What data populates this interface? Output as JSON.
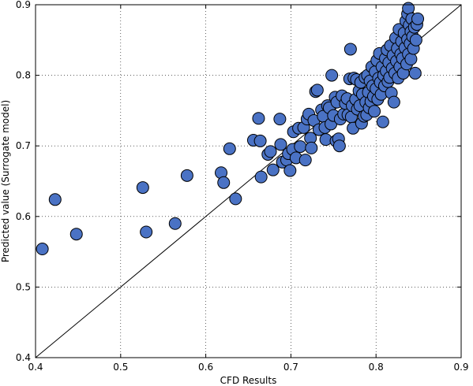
{
  "chart_data": {
    "type": "scatter",
    "xlabel": "CFD Results",
    "ylabel": "Predicted value (Surrogate model)",
    "xlim": [
      0.4,
      0.9
    ],
    "ylim": [
      0.4,
      0.9
    ],
    "xticks": [
      "0.4",
      "0.5",
      "0.6",
      "0.7",
      "0.8",
      "0.9"
    ],
    "yticks": [
      "0.4",
      "0.5",
      "0.6",
      "0.7",
      "0.8",
      "0.9"
    ],
    "grid": true,
    "reference_line": {
      "from": [
        0.4,
        0.4
      ],
      "to": [
        0.9,
        0.9
      ],
      "color": "#000000"
    },
    "marker_color": "#4a72c4",
    "marker_edge_color": "#000000",
    "points": [
      [
        0.408,
        0.554
      ],
      [
        0.423,
        0.624
      ],
      [
        0.448,
        0.575
      ],
      [
        0.526,
        0.641
      ],
      [
        0.53,
        0.578
      ],
      [
        0.564,
        0.59
      ],
      [
        0.578,
        0.658
      ],
      [
        0.618,
        0.662
      ],
      [
        0.621,
        0.648
      ],
      [
        0.628,
        0.696
      ],
      [
        0.635,
        0.625
      ],
      [
        0.656,
        0.708
      ],
      [
        0.662,
        0.739
      ],
      [
        0.664,
        0.707
      ],
      [
        0.665,
        0.656
      ],
      [
        0.673,
        0.688
      ],
      [
        0.676,
        0.692
      ],
      [
        0.679,
        0.666
      ],
      [
        0.687,
        0.738
      ],
      [
        0.688,
        0.702
      ],
      [
        0.69,
        0.677
      ],
      [
        0.695,
        0.68
      ],
      [
        0.697,
        0.689
      ],
      [
        0.699,
        0.665
      ],
      [
        0.702,
        0.695
      ],
      [
        0.703,
        0.72
      ],
      [
        0.706,
        0.683
      ],
      [
        0.709,
        0.725
      ],
      [
        0.711,
        0.699
      ],
      [
        0.715,
        0.726
      ],
      [
        0.717,
        0.68
      ],
      [
        0.719,
        0.738
      ],
      [
        0.721,
        0.745
      ],
      [
        0.723,
        0.711
      ],
      [
        0.724,
        0.697
      ],
      [
        0.727,
        0.736
      ],
      [
        0.729,
        0.777
      ],
      [
        0.731,
        0.779
      ],
      [
        0.733,
        0.723
      ],
      [
        0.736,
        0.751
      ],
      [
        0.738,
        0.742
      ],
      [
        0.74,
        0.726
      ],
      [
        0.741,
        0.709
      ],
      [
        0.743,
        0.757
      ],
      [
        0.745,
        0.754
      ],
      [
        0.747,
        0.731
      ],
      [
        0.748,
        0.8
      ],
      [
        0.75,
        0.743
      ],
      [
        0.752,
        0.769
      ],
      [
        0.753,
        0.707
      ],
      [
        0.754,
        0.762
      ],
      [
        0.756,
        0.71
      ],
      [
        0.757,
        0.7
      ],
      [
        0.758,
        0.738
      ],
      [
        0.76,
        0.771
      ],
      [
        0.762,
        0.745
      ],
      [
        0.764,
        0.76
      ],
      [
        0.766,
        0.767
      ],
      [
        0.767,
        0.744
      ],
      [
        0.769,
        0.795
      ],
      [
        0.77,
        0.837
      ],
      [
        0.771,
        0.741
      ],
      [
        0.772,
        0.757
      ],
      [
        0.773,
        0.725
      ],
      [
        0.774,
        0.796
      ],
      [
        0.776,
        0.766
      ],
      [
        0.777,
        0.794
      ],
      [
        0.778,
        0.752
      ],
      [
        0.78,
        0.778
      ],
      [
        0.781,
        0.757
      ],
      [
        0.782,
        0.79
      ],
      [
        0.783,
        0.732
      ],
      [
        0.784,
        0.773
      ],
      [
        0.786,
        0.742
      ],
      [
        0.787,
        0.797
      ],
      [
        0.788,
        0.762
      ],
      [
        0.789,
        0.744
      ],
      [
        0.79,
        0.8
      ],
      [
        0.791,
        0.776
      ],
      [
        0.792,
        0.754
      ],
      [
        0.793,
        0.792
      ],
      [
        0.794,
        0.763
      ],
      [
        0.795,
        0.812
      ],
      [
        0.796,
        0.785
      ],
      [
        0.797,
        0.77
      ],
      [
        0.798,
        0.749
      ],
      [
        0.799,
        0.805
      ],
      [
        0.8,
        0.781
      ],
      [
        0.801,
        0.821
      ],
      [
        0.802,
        0.766
      ],
      [
        0.803,
        0.796
      ],
      [
        0.804,
        0.831
      ],
      [
        0.805,
        0.79
      ],
      [
        0.806,
        0.773
      ],
      [
        0.807,
        0.812
      ],
      [
        0.808,
        0.734
      ],
      [
        0.809,
        0.8
      ],
      [
        0.81,
        0.785
      ],
      [
        0.811,
        0.824
      ],
      [
        0.812,
        0.806
      ],
      [
        0.813,
        0.836
      ],
      [
        0.814,
        0.791
      ],
      [
        0.815,
        0.818
      ],
      [
        0.816,
        0.797
      ],
      [
        0.817,
        0.842
      ],
      [
        0.818,
        0.775
      ],
      [
        0.819,
        0.81
      ],
      [
        0.82,
        0.828
      ],
      [
        0.821,
        0.762
      ],
      [
        0.822,
        0.803
      ],
      [
        0.823,
        0.853
      ],
      [
        0.824,
        0.82
      ],
      [
        0.825,
        0.838
      ],
      [
        0.826,
        0.796
      ],
      [
        0.827,
        0.865
      ],
      [
        0.828,
        0.812
      ],
      [
        0.829,
        0.83
      ],
      [
        0.83,
        0.848
      ],
      [
        0.831,
        0.824
      ],
      [
        0.832,
        0.803
      ],
      [
        0.833,
        0.86
      ],
      [
        0.834,
        0.839
      ],
      [
        0.835,
        0.877
      ],
      [
        0.836,
        0.816
      ],
      [
        0.837,
        0.851
      ],
      [
        0.837,
        0.887
      ],
      [
        0.838,
        0.83
      ],
      [
        0.838,
        0.895
      ],
      [
        0.839,
        0.871
      ],
      [
        0.84,
        0.845
      ],
      [
        0.841,
        0.862
      ],
      [
        0.841,
        0.823
      ],
      [
        0.842,
        0.88
      ],
      [
        0.843,
        0.855
      ],
      [
        0.844,
        0.838
      ],
      [
        0.845,
        0.868
      ],
      [
        0.846,
        0.803
      ],
      [
        0.847,
        0.85
      ],
      [
        0.848,
        0.872
      ],
      [
        0.849,
        0.88
      ]
    ]
  }
}
